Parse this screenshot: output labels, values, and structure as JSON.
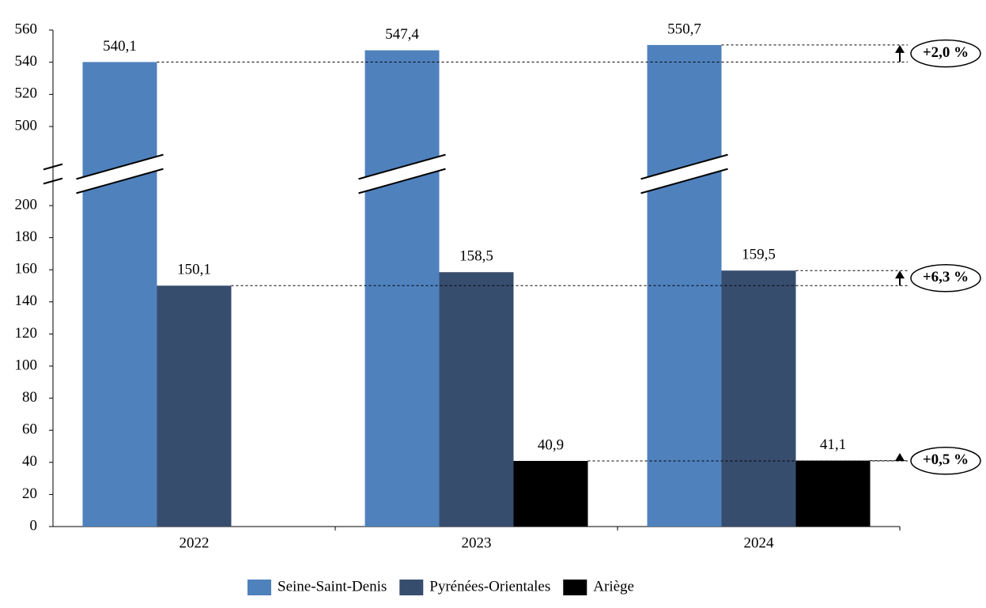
{
  "chart_data": {
    "type": "bar",
    "categories": [
      "2022",
      "2023",
      "2024"
    ],
    "series": [
      {
        "name": "Seine-Saint-Denis",
        "color": "#4f81bd",
        "values": [
          540.1,
          547.4,
          550.7
        ],
        "value_labels": [
          "540,1",
          "547,4",
          "550,7"
        ]
      },
      {
        "name": "Pyrénées-Orientales",
        "color": "#374d6e",
        "values": [
          150.1,
          158.5,
          159.5
        ],
        "value_labels": [
          "150,1",
          "158,5",
          "159,5"
        ]
      },
      {
        "name": "Ariège",
        "color": "#000000",
        "values": [
          null,
          40.9,
          41.1
        ],
        "value_labels": [
          null,
          "40,9",
          "41,1"
        ]
      }
    ],
    "ylim": [
      0,
      560
    ],
    "y_break": [
      200,
      500
    ],
    "yticks": [
      0,
      20,
      40,
      60,
      80,
      100,
      120,
      140,
      160,
      180,
      200,
      500,
      520,
      540,
      560
    ],
    "annotations": [
      "+2,0 %",
      "+6,3 %",
      "+0,5 %"
    ],
    "legend": "bottom"
  }
}
